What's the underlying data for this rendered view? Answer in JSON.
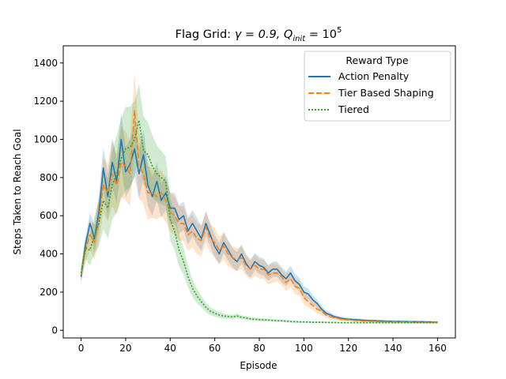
{
  "chart_data": {
    "type": "line",
    "title_prefix": "Flag Grid: ",
    "title_gamma": "γ = 0.9, ",
    "title_q": "Q",
    "title_q_sub": "init",
    "title_q_eq": " = 10",
    "title_q_sup": "5",
    "xlabel": "Episode",
    "ylabel": "Steps Taken to Reach Goal",
    "xlim": [
      -8,
      168
    ],
    "ylim": [
      -40,
      1490
    ],
    "x_ticks": [
      "0",
      "20",
      "40",
      "60",
      "80",
      "100",
      "120",
      "140",
      "160"
    ],
    "y_ticks": [
      "0",
      "200",
      "400",
      "600",
      "800",
      "1000",
      "1200",
      "1400"
    ],
    "legend_title": "Reward Type",
    "legend_position": "top-right",
    "series": [
      {
        "name": "Action Penalty",
        "color": "#1f77b4",
        "dash": "solid",
        "x": [
          0,
          2,
          4,
          6,
          8,
          10,
          12,
          14,
          16,
          18,
          20,
          22,
          24,
          26,
          28,
          30,
          32,
          34,
          36,
          38,
          40,
          42,
          44,
          46,
          48,
          50,
          52,
          54,
          56,
          58,
          60,
          62,
          64,
          66,
          68,
          70,
          72,
          74,
          76,
          78,
          80,
          82,
          84,
          86,
          88,
          90,
          92,
          94,
          96,
          98,
          100,
          102,
          104,
          106,
          108,
          110,
          112,
          114,
          116,
          118,
          120,
          124,
          128,
          132,
          136,
          140,
          144,
          148,
          152,
          156,
          160
        ],
        "values": [
          280,
          450,
          560,
          480,
          620,
          850,
          700,
          880,
          780,
          1000,
          830,
          870,
          950,
          820,
          920,
          760,
          700,
          780,
          680,
          720,
          640,
          640,
          580,
          600,
          520,
          560,
          520,
          480,
          560,
          500,
          440,
          400,
          460,
          420,
          380,
          360,
          400,
          350,
          320,
          360,
          340,
          330,
          300,
          320,
          320,
          290,
          270,
          300,
          260,
          240,
          200,
          190,
          160,
          140,
          110,
          90,
          80,
          70,
          65,
          60,
          58,
          55,
          52,
          50,
          48,
          47,
          46,
          45,
          45,
          44,
          43
        ],
        "band": [
          30,
          40,
          60,
          70,
          90,
          110,
          120,
          130,
          120,
          140,
          130,
          130,
          140,
          130,
          130,
          110,
          100,
          100,
          90,
          90,
          80,
          80,
          75,
          75,
          70,
          70,
          70,
          65,
          65,
          60,
          60,
          55,
          55,
          55,
          50,
          50,
          50,
          50,
          45,
          45,
          45,
          45,
          40,
          40,
          40,
          40,
          38,
          38,
          36,
          34,
          30,
          28,
          24,
          20,
          18,
          14,
          12,
          10,
          9,
          8,
          8,
          7,
          6,
          6,
          6,
          5,
          5,
          5,
          5,
          5,
          5
        ]
      },
      {
        "name": "Tier Based Shaping",
        "color": "#ff7f0e",
        "dash": "dashed",
        "x": [
          0,
          2,
          4,
          6,
          8,
          10,
          12,
          14,
          16,
          18,
          20,
          22,
          24,
          26,
          28,
          30,
          32,
          34,
          36,
          38,
          40,
          42,
          44,
          46,
          48,
          50,
          52,
          54,
          56,
          58,
          60,
          62,
          64,
          66,
          68,
          70,
          72,
          74,
          76,
          78,
          80,
          82,
          84,
          86,
          88,
          90,
          92,
          94,
          96,
          98,
          100,
          102,
          104,
          106,
          108,
          110,
          112,
          114,
          116,
          118,
          120,
          124,
          128,
          132,
          136,
          140,
          144,
          148,
          152,
          156,
          160
        ],
        "values": [
          290,
          420,
          500,
          460,
          580,
          760,
          720,
          820,
          760,
          880,
          860,
          820,
          1150,
          860,
          820,
          720,
          720,
          700,
          720,
          680,
          620,
          600,
          560,
          560,
          500,
          520,
          480,
          470,
          540,
          480,
          460,
          420,
          440,
          400,
          380,
          370,
          380,
          340,
          320,
          340,
          320,
          320,
          290,
          300,
          300,
          280,
          250,
          270,
          230,
          220,
          170,
          150,
          130,
          110,
          100,
          80,
          70,
          65,
          60,
          55,
          55,
          50,
          48,
          46,
          45,
          44,
          44,
          43,
          42,
          42,
          42
        ],
        "band": [
          40,
          60,
          80,
          90,
          110,
          140,
          150,
          170,
          160,
          180,
          180,
          170,
          200,
          170,
          160,
          140,
          130,
          120,
          120,
          110,
          100,
          100,
          90,
          90,
          85,
          85,
          80,
          80,
          80,
          75,
          75,
          70,
          70,
          65,
          60,
          60,
          60,
          55,
          55,
          55,
          50,
          50,
          50,
          50,
          45,
          45,
          45,
          42,
          40,
          38,
          35,
          30,
          26,
          22,
          20,
          16,
          14,
          12,
          10,
          9,
          8,
          7,
          7,
          6,
          6,
          6,
          5,
          5,
          5,
          5,
          5
        ]
      },
      {
        "name": "Tiered",
        "color": "#2ca02c",
        "dash": "dotted",
        "x": [
          0,
          2,
          4,
          6,
          8,
          10,
          12,
          14,
          16,
          18,
          20,
          22,
          24,
          26,
          28,
          30,
          32,
          34,
          36,
          38,
          40,
          42,
          44,
          46,
          48,
          50,
          52,
          54,
          56,
          58,
          60,
          62,
          64,
          66,
          68,
          70,
          72,
          74,
          76,
          78,
          80,
          82,
          84,
          86,
          88,
          90,
          92,
          94,
          96,
          98,
          100,
          102,
          104,
          106,
          108,
          110,
          112,
          114,
          116,
          118,
          120,
          124,
          128,
          132,
          136,
          140,
          144,
          148,
          152,
          156,
          160
        ],
        "values": [
          300,
          430,
          420,
          500,
          560,
          680,
          640,
          760,
          820,
          900,
          950,
          960,
          1000,
          1100,
          940,
          920,
          860,
          820,
          800,
          780,
          580,
          520,
          420,
          360,
          280,
          220,
          180,
          150,
          120,
          100,
          90,
          80,
          75,
          72,
          70,
          75,
          68,
          65,
          60,
          58,
          56,
          55,
          54,
          52,
          50,
          50,
          48,
          46,
          45,
          44,
          44,
          43,
          42,
          42,
          42,
          41,
          41,
          41,
          40,
          40,
          40,
          40,
          40,
          40,
          40,
          40,
          40,
          40,
          40,
          40,
          40
        ],
        "band": [
          40,
          60,
          80,
          100,
          120,
          150,
          160,
          180,
          200,
          210,
          220,
          210,
          200,
          190,
          180,
          170,
          160,
          150,
          140,
          130,
          110,
          100,
          85,
          70,
          55,
          45,
          38,
          30,
          25,
          20,
          18,
          15,
          13,
          12,
          11,
          12,
          10,
          10,
          9,
          8,
          8,
          8,
          7,
          7,
          7,
          6,
          6,
          6,
          6,
          5,
          5,
          5,
          5,
          5,
          5,
          4,
          4,
          4,
          4,
          4,
          4,
          4,
          4,
          4,
          4,
          4,
          4,
          4,
          4,
          4,
          4
        ]
      }
    ]
  }
}
